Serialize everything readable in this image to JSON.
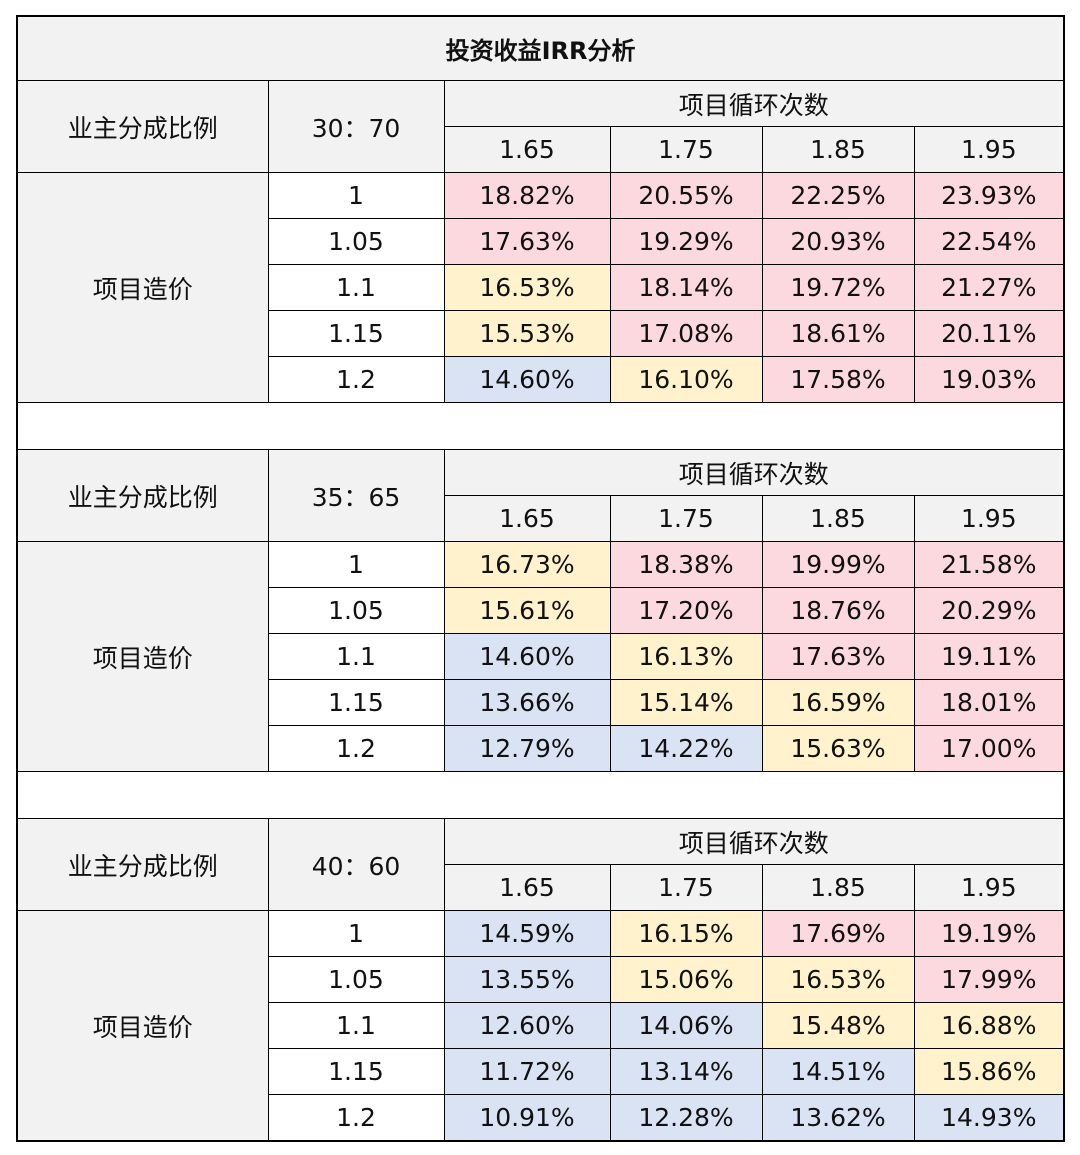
{
  "palette": {
    "p": "#fbd9de",
    "y": "#fff2cc",
    "b": "#dae3f3",
    "h": "#f2f2f2"
  },
  "title": "投资收益IRR分析",
  "blocks": [
    {
      "ratio_label": "业主分成比例",
      "ratio": "30：70",
      "cycles_label": "项目循环次数",
      "cycles": [
        "1.65",
        "1.75",
        "1.85",
        "1.95"
      ],
      "cost_label": "项目造价",
      "rows": [
        {
          "cost": "1",
          "values": [
            "18.82%",
            "20.55%",
            "22.25%",
            "23.93%"
          ],
          "fills": [
            "p",
            "p",
            "p",
            "p"
          ]
        },
        {
          "cost": "1.05",
          "values": [
            "17.63%",
            "19.29%",
            "20.93%",
            "22.54%"
          ],
          "fills": [
            "p",
            "p",
            "p",
            "p"
          ]
        },
        {
          "cost": "1.1",
          "values": [
            "16.53%",
            "18.14%",
            "19.72%",
            "21.27%"
          ],
          "fills": [
            "y",
            "p",
            "p",
            "p"
          ]
        },
        {
          "cost": "1.15",
          "values": [
            "15.53%",
            "17.08%",
            "18.61%",
            "20.11%"
          ],
          "fills": [
            "y",
            "p",
            "p",
            "p"
          ]
        },
        {
          "cost": "1.2",
          "values": [
            "14.60%",
            "16.10%",
            "17.58%",
            "19.03%"
          ],
          "fills": [
            "b",
            "y",
            "p",
            "p"
          ]
        }
      ]
    },
    {
      "ratio_label": "业主分成比例",
      "ratio": "35：65",
      "cycles_label": "项目循环次数",
      "cycles": [
        "1.65",
        "1.75",
        "1.85",
        "1.95"
      ],
      "cost_label": "项目造价",
      "rows": [
        {
          "cost": "1",
          "values": [
            "16.73%",
            "18.38%",
            "19.99%",
            "21.58%"
          ],
          "fills": [
            "y",
            "p",
            "p",
            "p"
          ]
        },
        {
          "cost": "1.05",
          "values": [
            "15.61%",
            "17.20%",
            "18.76%",
            "20.29%"
          ],
          "fills": [
            "y",
            "p",
            "p",
            "p"
          ]
        },
        {
          "cost": "1.1",
          "values": [
            "14.60%",
            "16.13%",
            "17.63%",
            "19.11%"
          ],
          "fills": [
            "b",
            "y",
            "p",
            "p"
          ]
        },
        {
          "cost": "1.15",
          "values": [
            "13.66%",
            "15.14%",
            "16.59%",
            "18.01%"
          ],
          "fills": [
            "b",
            "y",
            "y",
            "p"
          ]
        },
        {
          "cost": "1.2",
          "values": [
            "12.79%",
            "14.22%",
            "15.63%",
            "17.00%"
          ],
          "fills": [
            "b",
            "b",
            "y",
            "p"
          ]
        }
      ]
    },
    {
      "ratio_label": "业主分成比例",
      "ratio": "40：60",
      "cycles_label": "项目循环次数",
      "cycles": [
        "1.65",
        "1.75",
        "1.85",
        "1.95"
      ],
      "cost_label": "项目造价",
      "rows": [
        {
          "cost": "1",
          "values": [
            "14.59%",
            "16.15%",
            "17.69%",
            "19.19%"
          ],
          "fills": [
            "b",
            "y",
            "p",
            "p"
          ]
        },
        {
          "cost": "1.05",
          "values": [
            "13.55%",
            "15.06%",
            "16.53%",
            "17.99%"
          ],
          "fills": [
            "b",
            "y",
            "y",
            "p"
          ]
        },
        {
          "cost": "1.1",
          "values": [
            "12.60%",
            "14.06%",
            "15.48%",
            "16.88%"
          ],
          "fills": [
            "b",
            "b",
            "y",
            "y"
          ]
        },
        {
          "cost": "1.15",
          "values": [
            "11.72%",
            "13.14%",
            "14.51%",
            "15.86%"
          ],
          "fills": [
            "b",
            "b",
            "b",
            "y"
          ]
        },
        {
          "cost": "1.2",
          "values": [
            "10.91%",
            "12.28%",
            "13.62%",
            "14.93%"
          ],
          "fills": [
            "b",
            "b",
            "b",
            "b"
          ]
        }
      ]
    }
  ]
}
